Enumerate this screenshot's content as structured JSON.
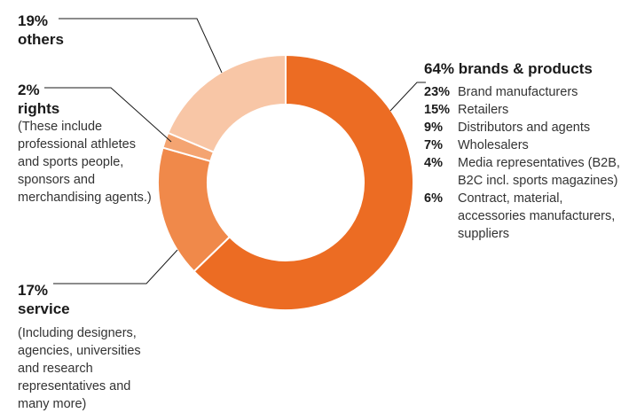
{
  "chart_data": {
    "type": "pie",
    "donut": true,
    "series": [
      {
        "name": "brands & products",
        "value": 64,
        "label": "64%",
        "color": "#ec6c23"
      },
      {
        "name": "service",
        "value": 17,
        "label": "17%",
        "color": "#f0894a"
      },
      {
        "name": "rights",
        "value": 2,
        "label": "2%",
        "color": "#f4a471"
      },
      {
        "name": "others",
        "value": 19,
        "label": "19%",
        "color": "#f8c6a6"
      }
    ],
    "callouts": {
      "others": {
        "pct": "19%",
        "name": "others"
      },
      "rights": {
        "pct": "2%",
        "name": "rights",
        "note": "(These include professional athletes and sports people, sponsors and merchandising agents.)"
      },
      "service": {
        "pct": "17%",
        "name": "service",
        "note": "(Including designers, agencies, universities and research representatives and many more)"
      },
      "brands": {
        "title": "64% brands & products",
        "items": [
          {
            "pct": "23%",
            "label": "Brand manufacturers"
          },
          {
            "pct": "15%",
            "label": "Retailers"
          },
          {
            "pct": "9%",
            "label": "Distributors and agents"
          },
          {
            "pct": "7%",
            "label": "Wholesalers"
          },
          {
            "pct": "4%",
            "label": "Media representatives (B2B, B2C incl. sports magazines)"
          },
          {
            "pct": "6%",
            "label": "Contract, material, accessories manufacturers, suppliers"
          }
        ]
      }
    }
  }
}
